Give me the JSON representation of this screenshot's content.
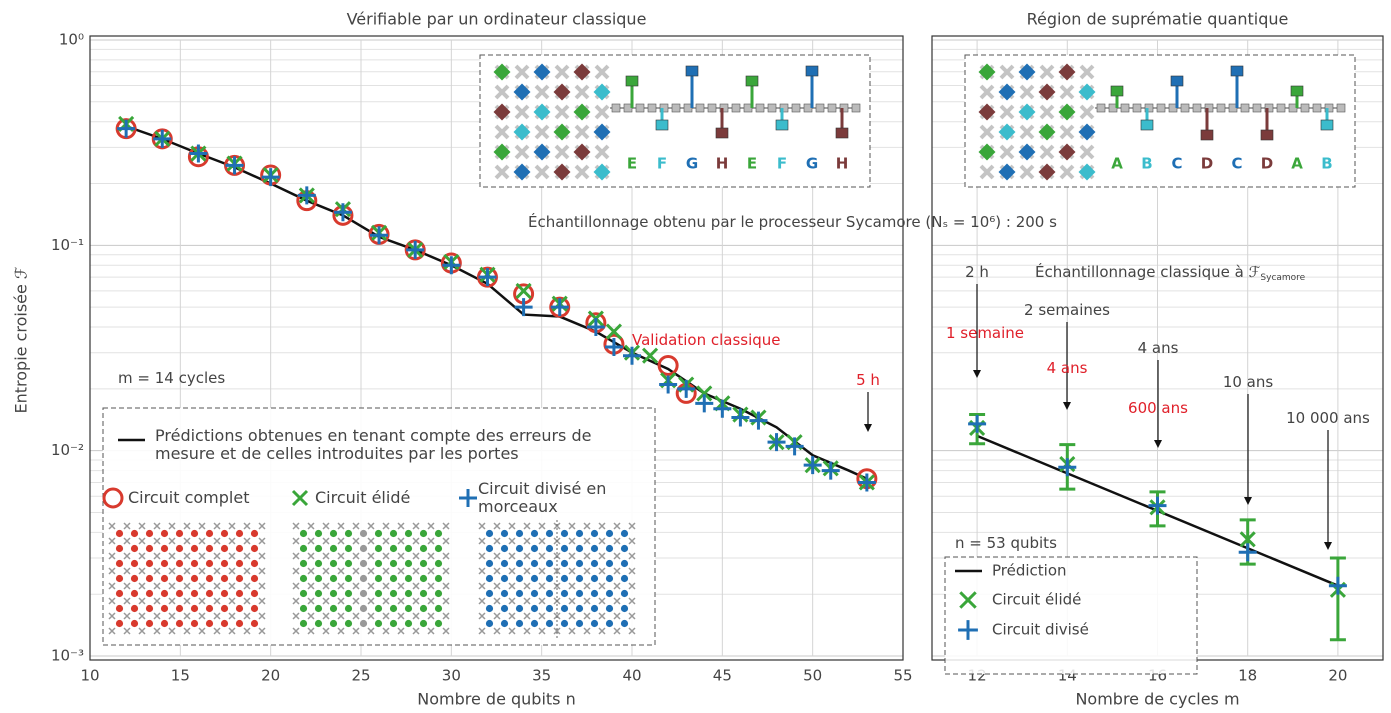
{
  "chart_data": [
    {
      "type": "scatter",
      "title": "Vérifiable par un ordinateur classique",
      "xlabel": "Nombre de qubits n",
      "ylabel": "Entropie croisée ℱ",
      "xlim": [
        10,
        55
      ],
      "xticks": [
        10,
        15,
        20,
        25,
        30,
        35,
        40,
        45,
        50,
        55
      ],
      "ylim": [
        0.001,
        1
      ],
      "yscale": "log",
      "grid": true,
      "legend": "lower left",
      "show_ytick_labels": true,
      "yticks": [
        {
          "value": 0.001,
          "label": "10⁻³"
        },
        {
          "value": 0.01,
          "label": "10⁻²"
        },
        {
          "value": 0.1,
          "label": "10⁻¹"
        },
        {
          "value": 1,
          "label": "10⁰"
        }
      ],
      "series": [
        {
          "name": "Prédictions obtenues en tenant compte des erreurs de mesure et de celles introduites par les portes",
          "type": "line",
          "color": "#111111",
          "x": [
            12,
            14,
            16,
            18,
            20,
            22,
            24,
            26,
            28,
            30,
            32,
            34,
            36,
            38,
            40,
            42,
            44,
            46,
            48,
            50,
            52,
            53
          ],
          "values": [
            0.38,
            0.33,
            0.28,
            0.24,
            0.2,
            0.165,
            0.14,
            0.11,
            0.095,
            0.08,
            0.065,
            0.046,
            0.045,
            0.038,
            0.03,
            0.025,
            0.019,
            0.016,
            0.013,
            0.0095,
            0.008,
            0.0073
          ]
        },
        {
          "name": "Circuit complet",
          "type": "scatter",
          "marker": "circle",
          "color": "#d83a2e",
          "x": [
            12,
            14,
            16,
            18,
            20,
            22,
            24,
            26,
            28,
            30,
            32,
            34,
            36,
            38,
            39,
            42,
            43,
            53
          ],
          "values": [
            0.37,
            0.33,
            0.27,
            0.245,
            0.22,
            0.165,
            0.14,
            0.113,
            0.095,
            0.082,
            0.07,
            0.058,
            0.05,
            0.042,
            0.033,
            0.026,
            0.019,
            0.0073
          ]
        },
        {
          "name": "Circuit élidé",
          "type": "scatter",
          "marker": "x",
          "color": "#3aa63a",
          "x": [
            12,
            14,
            16,
            18,
            20,
            22,
            24,
            26,
            28,
            30,
            32,
            34,
            36,
            38,
            39,
            40,
            41,
            42,
            43,
            44,
            45,
            46,
            47,
            48,
            49,
            50,
            51,
            53
          ],
          "values": [
            0.39,
            0.33,
            0.28,
            0.25,
            0.22,
            0.175,
            0.15,
            0.115,
            0.095,
            0.083,
            0.072,
            0.06,
            0.052,
            0.044,
            0.038,
            0.03,
            0.029,
            0.022,
            0.021,
            0.019,
            0.017,
            0.015,
            0.0145,
            0.011,
            0.011,
            0.0085,
            0.0082,
            0.007
          ]
        },
        {
          "name": "Circuit divisé en morceaux",
          "type": "scatter",
          "marker": "plus",
          "color": "#1f6fb4",
          "x": [
            12,
            14,
            16,
            18,
            20,
            22,
            24,
            26,
            28,
            30,
            32,
            34,
            36,
            38,
            39,
            40,
            42,
            43,
            44,
            45,
            46,
            47,
            48,
            49,
            50,
            51,
            53
          ],
          "values": [
            0.37,
            0.33,
            0.28,
            0.245,
            0.215,
            0.175,
            0.145,
            0.112,
            0.095,
            0.08,
            0.07,
            0.05,
            0.05,
            0.04,
            0.032,
            0.029,
            0.021,
            0.02,
            0.017,
            0.016,
            0.0145,
            0.014,
            0.011,
            0.0105,
            0.0085,
            0.008,
            0.007
          ]
        }
      ],
      "annotations": [
        {
          "text": "m = 14 cycles",
          "color": "#444444"
        },
        {
          "text": "Validation classique",
          "color": "#e0202a"
        },
        {
          "text": "5 h",
          "color": "#e0202a"
        }
      ],
      "inset_labels": [
        "E",
        "F",
        "G",
        "H",
        "E",
        "F",
        "G",
        "H"
      ]
    },
    {
      "type": "scatter",
      "title": "Région de suprématie quantique",
      "xlabel": "Nombre de cycles m",
      "xlim": [
        11,
        21
      ],
      "xticks": [
        12,
        14,
        16,
        18,
        20
      ],
      "ylim": [
        0.001,
        1
      ],
      "yscale": "log",
      "grid": true,
      "legend": "lower left",
      "show_ytick_labels": false,
      "yticks": [
        0.001,
        0.01,
        0.1,
        1
      ],
      "series": [
        {
          "name": "Prédiction",
          "type": "line",
          "color": "#111111",
          "x": [
            12,
            20
          ],
          "values": [
            0.0118,
            0.0022
          ]
        },
        {
          "name": "Circuit élidé",
          "type": "scatter",
          "marker": "x",
          "color": "#3aa63a",
          "x": [
            12,
            14,
            16,
            18,
            20
          ],
          "values": [
            0.0129,
            0.0086,
            0.0053,
            0.0037,
            0.0021
          ],
          "errors": [
            0.0021,
            0.0021,
            0.001,
            0.0009,
            0.0009
          ]
        },
        {
          "name": "Circuit divisé",
          "type": "scatter",
          "marker": "plus",
          "color": "#1f6fb4",
          "x": [
            12,
            14,
            16,
            18,
            20
          ],
          "values": [
            0.0135,
            0.0083,
            0.0054,
            0.0032,
            0.0022
          ]
        }
      ],
      "annotations": [
        {
          "text": "Échantillonnage obtenu par le processeur Sycamore (Nₛ = 10⁶) : 200 s",
          "color": "#444444"
        },
        {
          "text": "Échantillonnage classique à ℱ",
          "subscript": "Sycamore",
          "color": "#444444"
        },
        {
          "text": "2 h",
          "color": "#444444"
        },
        {
          "text": "1 semaine",
          "color": "#e0202a"
        },
        {
          "text": "2 semaines",
          "color": "#444444"
        },
        {
          "text": "4 ans",
          "color": "#e0202a"
        },
        {
          "text": "4 ans",
          "color": "#444444"
        },
        {
          "text": "600 ans",
          "color": "#e0202a"
        },
        {
          "text": "10 ans",
          "color": "#444444"
        },
        {
          "text": "10 000 ans",
          "color": "#444444"
        },
        {
          "text": "n = 53 qubits",
          "color": "#444444"
        }
      ],
      "inset_labels": [
        "A",
        "B",
        "C",
        "D",
        "C",
        "D",
        "A",
        "B"
      ]
    }
  ]
}
